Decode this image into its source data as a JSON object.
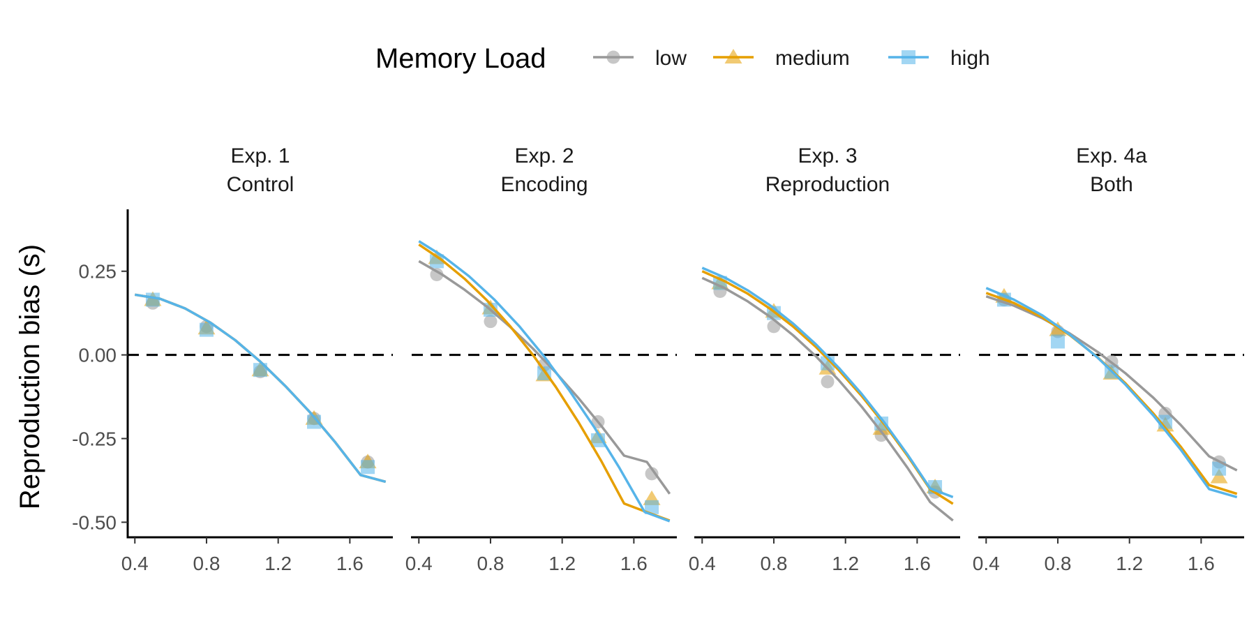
{
  "chart_data": {
    "type": "scatter",
    "ylabel": "Reproduction bias (s)",
    "xlabel": "",
    "xlim": [
      0.36,
      1.84
    ],
    "ylim": [
      -0.545,
      0.435
    ],
    "xticks": [
      "0.4",
      "0.8",
      "1.2",
      "1.6"
    ],
    "yticks": [
      "0.25",
      "0.00",
      "-0.25",
      "-0.50"
    ],
    "reference_line": {
      "y": 0,
      "style": "dashed"
    },
    "legend": {
      "title": "Memory Load",
      "placement": "top",
      "entries": [
        "low",
        "medium",
        "high"
      ]
    },
    "colors": {
      "low": "#999999",
      "medium": "#E69F00",
      "high": "#56B4E9"
    },
    "point_x": [
      0.5,
      0.8,
      1.1,
      1.4,
      1.7
    ],
    "fit_x_range": [
      0.4,
      1.8
    ],
    "facets": [
      {
        "title_line1": "Exp. 1",
        "title_line2": "Control",
        "series": [
          {
            "name": "low",
            "points": [
              0.155,
              0.085,
              -0.05,
              -0.19,
              -0.32
            ],
            "fit": [
              0.18,
              0.168,
              0.139,
              0.097,
              0.044,
              -0.02,
              -0.093,
              -0.173,
              -0.262,
              -0.359,
              -0.379
            ]
          },
          {
            "name": "medium",
            "points": [
              0.165,
              0.08,
              -0.045,
              -0.19,
              -0.32
            ],
            "fit": [
              0.18,
              0.168,
              0.139,
              0.097,
              0.044,
              -0.02,
              -0.093,
              -0.173,
              -0.262,
              -0.359,
              -0.379
            ]
          },
          {
            "name": "high",
            "points": [
              0.165,
              0.075,
              -0.045,
              -0.2,
              -0.335
            ],
            "fit": [
              0.18,
              0.168,
              0.139,
              0.097,
              0.044,
              -0.02,
              -0.093,
              -0.173,
              -0.262,
              -0.359,
              -0.379
            ]
          }
        ]
      },
      {
        "title_line1": "Exp. 2",
        "title_line2": "Encoding",
        "series": [
          {
            "name": "low",
            "points": [
              0.24,
              0.1,
              -0.03,
              -0.2,
              -0.355
            ],
            "fit": [
              0.28,
              0.241,
              0.195,
              0.143,
              0.084,
              0.019,
              -0.052,
              -0.129,
              -0.212,
              -0.301,
              -0.32,
              -0.415
            ]
          },
          {
            "name": "medium",
            "points": [
              0.29,
              0.14,
              -0.06,
              -0.245,
              -0.43
            ],
            "fit": [
              0.33,
              0.284,
              0.228,
              0.162,
              0.086,
              0.0,
              -0.095,
              -0.201,
              -0.317,
              -0.444,
              -0.47,
              -0.495
            ]
          },
          {
            "name": "high",
            "points": [
              0.28,
              0.135,
              -0.055,
              -0.255,
              -0.455
            ],
            "fit": [
              0.34,
              0.293,
              0.235,
              0.166,
              0.086,
              -0.005,
              -0.106,
              -0.217,
              -0.338,
              -0.469,
              -0.497
            ]
          }
        ]
      },
      {
        "title_line1": "Exp. 3",
        "title_line2": "Reproduction",
        "series": [
          {
            "name": "low",
            "points": [
              0.19,
              0.085,
              -0.08,
              -0.24,
              -0.41
            ],
            "fit": [
              0.23,
              0.199,
              0.16,
              0.113,
              0.058,
              -0.005,
              -0.076,
              -0.155,
              -0.242,
              -0.337,
              -0.44,
              -0.495
            ]
          },
          {
            "name": "medium",
            "points": [
              0.215,
              0.13,
              -0.04,
              -0.22,
              -0.395
            ],
            "fit": [
              0.25,
              0.22,
              0.183,
              0.137,
              0.084,
              0.023,
              -0.046,
              -0.123,
              -0.208,
              -0.301,
              -0.402,
              -0.445
            ]
          },
          {
            "name": "high",
            "points": [
              0.215,
              0.125,
              -0.025,
              -0.205,
              -0.395
            ],
            "fit": [
              0.26,
              0.231,
              0.193,
              0.147,
              0.093,
              0.031,
              -0.039,
              -0.117,
              -0.203,
              -0.297,
              -0.399,
              -0.425
            ]
          }
        ]
      },
      {
        "title_line1": "Exp. 4a",
        "title_line2": "Both",
        "series": [
          {
            "name": "low",
            "points": [
              0.165,
              0.07,
              -0.02,
              -0.175,
              -0.32
            ],
            "fit": [
              0.175,
              0.147,
              0.11,
              0.064,
              0.009,
              -0.055,
              -0.128,
              -0.211,
              -0.303,
              -0.345
            ]
          },
          {
            "name": "medium",
            "points": [
              0.175,
              0.075,
              -0.055,
              -0.21,
              -0.365
            ],
            "fit": [
              0.185,
              0.155,
              0.113,
              0.059,
              -0.007,
              -0.085,
              -0.175,
              -0.276,
              -0.389,
              -0.415
            ]
          },
          {
            "name": "high",
            "points": [
              0.165,
              0.04,
              -0.05,
              -0.2,
              -0.34
            ],
            "fit": [
              0.2,
              0.165,
              0.119,
              0.061,
              -0.008,
              -0.089,
              -0.181,
              -0.285,
              -0.401,
              -0.425
            ]
          }
        ]
      }
    ]
  }
}
